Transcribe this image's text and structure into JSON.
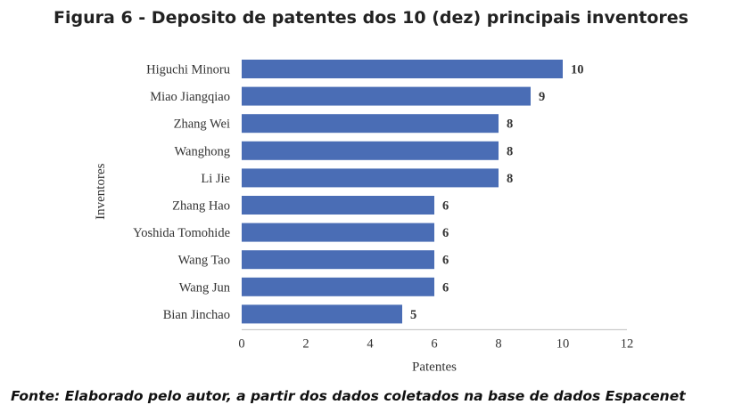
{
  "title": "Figura 6 - Deposito de patentes dos 10 (dez) principais inventores",
  "caption": "Fonte: Elaborado pelo autor, a partir dos dados coletados na base de dados Espacenet",
  "colors": {
    "bar": "#4A6DB5"
  },
  "chart_data": {
    "type": "bar",
    "orientation": "horizontal",
    "title": "Figura 6 - Deposito de patentes dos 10 (dez) principais inventores",
    "xlabel": "Patentes",
    "ylabel": "Inventores",
    "xlim": [
      0,
      12
    ],
    "xticks": [
      0,
      2,
      4,
      6,
      8,
      10,
      12
    ],
    "grid": false,
    "categories": [
      "Higuchi Minoru",
      "Miao Jiangqiao",
      "Zhang Wei",
      "Wanghong",
      "Li Jie",
      "Zhang Hao",
      "Yoshida Tomohide",
      "Wang Tao",
      "Wang Jun",
      "Bian Jinchao"
    ],
    "values": [
      10,
      9,
      8,
      8,
      8,
      6,
      6,
      6,
      6,
      5
    ]
  }
}
